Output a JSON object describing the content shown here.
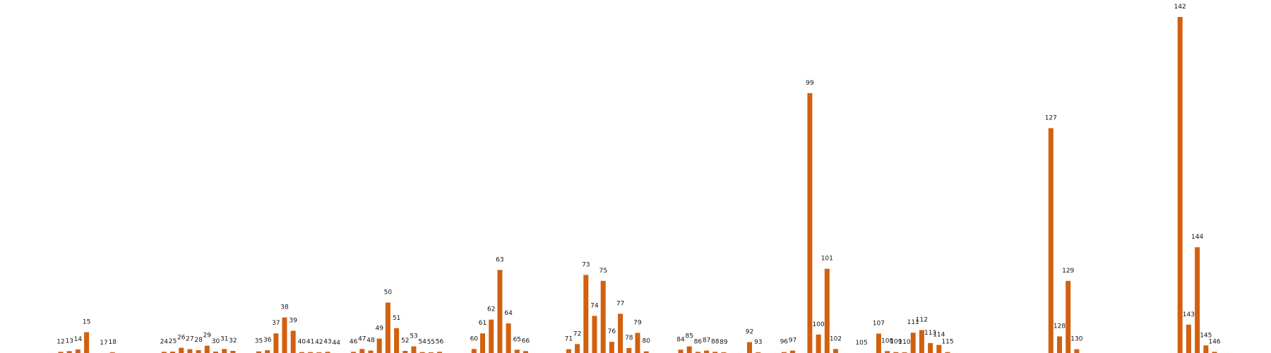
{
  "chart_data": {
    "type": "bar",
    "title": "",
    "xlabel": "",
    "ylabel": "",
    "ylim": [
      0,
      142
    ],
    "grid": false,
    "legend": "none",
    "bar_color": "#d2600e",
    "x": [
      12,
      13,
      14,
      15,
      17,
      18,
      24,
      25,
      26,
      27,
      28,
      29,
      30,
      31,
      32,
      35,
      36,
      37,
      38,
      39,
      40,
      41,
      42,
      43,
      44,
      46,
      47,
      48,
      49,
      50,
      51,
      52,
      53,
      54,
      55,
      56,
      60,
      61,
      62,
      63,
      64,
      65,
      66,
      71,
      72,
      73,
      74,
      75,
      76,
      77,
      78,
      79,
      80,
      84,
      85,
      86,
      87,
      88,
      89,
      92,
      93,
      96,
      97,
      99,
      100,
      101,
      102,
      105,
      107,
      108,
      109,
      110,
      111,
      112,
      113,
      114,
      115,
      127,
      128,
      129,
      130,
      142,
      143,
      144,
      145,
      146
    ],
    "values": [
      0.5,
      0.8,
      1.5,
      8.8,
      0,
      0.3,
      0.5,
      0.6,
      2.2,
      1.6,
      1.2,
      3.1,
      0.6,
      1.7,
      0.9,
      0.7,
      1.2,
      8.3,
      15,
      9.4,
      0.4,
      0.4,
      0.3,
      0.5,
      0,
      0.5,
      1.7,
      1,
      6.1,
      21.3,
      10.5,
      0.9,
      2.8,
      0.4,
      0.3,
      0.5,
      1.7,
      8.3,
      14.1,
      35.1,
      12.5,
      1.4,
      0.8,
      1.6,
      3.8,
      33,
      15.7,
      30.5,
      4.7,
      16.6,
      2.1,
      8.5,
      0.7,
      1.4,
      2.8,
      0.5,
      1,
      0.5,
      0.3,
      4.6,
      0.3,
      0.4,
      1,
      109.8,
      7.8,
      35.6,
      1.7,
      0,
      8.2,
      0.8,
      0.4,
      0.3,
      8.6,
      9.7,
      4.2,
      3.4,
      0.4,
      95,
      7,
      30.5,
      1.6,
      142,
      12,
      44.7,
      3.2,
      0.5
    ]
  }
}
